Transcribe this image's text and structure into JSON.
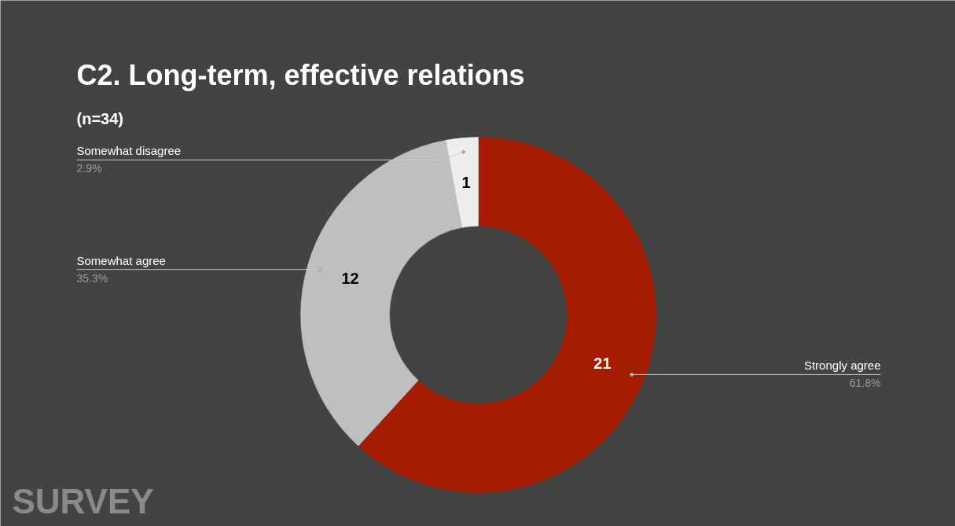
{
  "chart_data": {
    "type": "donut",
    "title": "C2. Long-term, effective relations",
    "subtitle": "(n=34)",
    "categories": [
      "Strongly agree",
      "Somewhat agree",
      "Somewhat disagree"
    ],
    "values": [
      61.8,
      35.3,
      2.9
    ],
    "colors": [
      "#a61c00",
      "#bfbfbf",
      "#eeeeee"
    ],
    "value_labels": [
      "61.8%",
      "35.3%",
      "2.9%"
    ],
    "annotations": [
      {
        "text": "21",
        "x": "Strongly agree"
      },
      {
        "text": "12",
        "x": "Somewhat agree"
      },
      {
        "text": "1",
        "x": "Somewhat disagree"
      },
      "SURVEY"
    ]
  }
}
